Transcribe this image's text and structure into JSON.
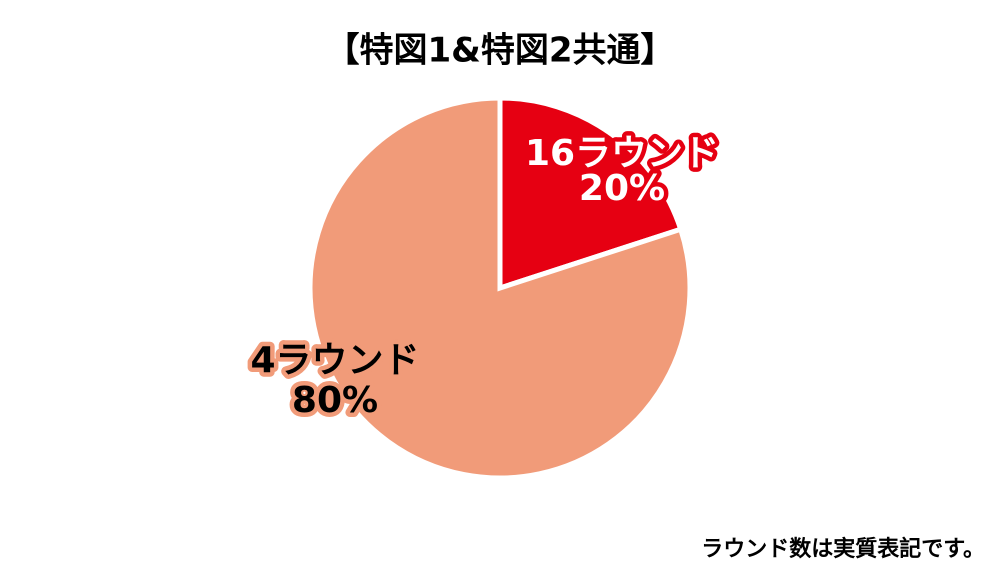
{
  "chart_data": {
    "type": "pie",
    "title": "【特図1&特図2共通】",
    "categories": [
      "16ラウンド",
      "4ラウンド"
    ],
    "values": [
      20,
      80
    ],
    "value_labels": [
      "20%",
      "80%"
    ],
    "colors": [
      "#e60012",
      "#f19b79"
    ],
    "note": "ラウンド数は実質表記です。"
  }
}
